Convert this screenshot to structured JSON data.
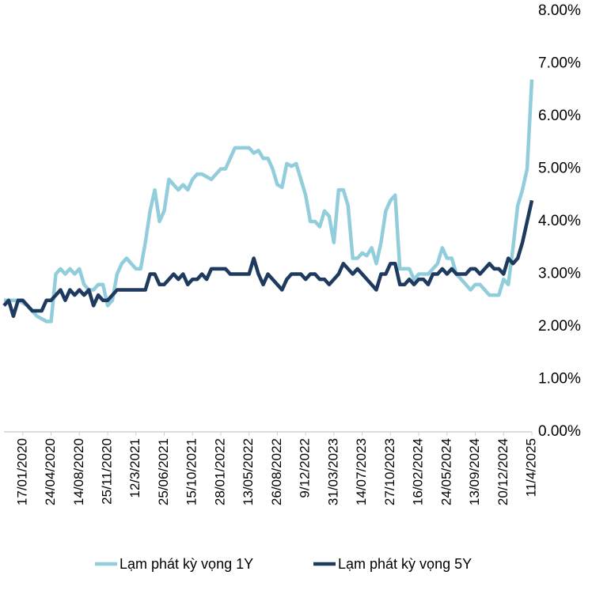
{
  "chart_data": {
    "type": "line",
    "categories": [
      null,
      null,
      null,
      null,
      "17/01/2020",
      null,
      null,
      null,
      null,
      null,
      "24/04/2020",
      null,
      null,
      null,
      null,
      null,
      "14/08/2020",
      null,
      null,
      null,
      null,
      null,
      "25/11/2020",
      null,
      null,
      null,
      null,
      null,
      "12/3/2021",
      null,
      null,
      null,
      null,
      null,
      "25/06/2021",
      null,
      null,
      null,
      null,
      null,
      "15/10/2021",
      null,
      null,
      null,
      null,
      null,
      "28/01/2022",
      null,
      null,
      null,
      null,
      null,
      "13/05/2022",
      null,
      null,
      null,
      null,
      null,
      "26/08/2022",
      null,
      null,
      null,
      null,
      null,
      "9/12/2022",
      null,
      null,
      null,
      null,
      null,
      "31/03/2023",
      null,
      null,
      null,
      null,
      null,
      "14/07/2023",
      null,
      null,
      null,
      null,
      null,
      "27/10/2023",
      null,
      null,
      null,
      null,
      null,
      "16/02/2024",
      null,
      null,
      null,
      null,
      null,
      "24/05/2024",
      null,
      null,
      null,
      null,
      null,
      "13/09/2024",
      null,
      null,
      null,
      null,
      null,
      "20/12/2024",
      null,
      null,
      null,
      null,
      null,
      "11/4/2025"
    ],
    "series": [
      {
        "name": "Lạm phát kỳ vọng 1Y",
        "color": "#92cddc",
        "values": [
          2.5,
          2.5,
          2.5,
          2.5,
          2.45,
          2.4,
          2.3,
          2.2,
          2.15,
          2.1,
          2.1,
          3.0,
          3.1,
          3.0,
          3.1,
          3.0,
          3.1,
          2.8,
          2.7,
          2.7,
          2.8,
          2.8,
          2.4,
          2.5,
          3.0,
          3.2,
          3.3,
          3.2,
          3.1,
          3.1,
          3.6,
          4.2,
          4.6,
          4.0,
          4.2,
          4.8,
          4.7,
          4.6,
          4.7,
          4.6,
          4.8,
          4.9,
          4.9,
          4.85,
          4.8,
          4.9,
          5.0,
          5.0,
          5.2,
          5.4,
          5.4,
          5.4,
          5.4,
          5.3,
          5.35,
          5.2,
          5.2,
          5.0,
          4.7,
          4.65,
          5.1,
          5.05,
          5.1,
          4.8,
          4.5,
          4.0,
          4.0,
          3.9,
          4.2,
          4.1,
          3.6,
          4.6,
          4.6,
          4.3,
          3.3,
          3.3,
          3.4,
          3.35,
          3.5,
          3.2,
          3.6,
          4.2,
          4.4,
          4.5,
          3.1,
          3.1,
          3.1,
          2.9,
          3.0,
          3.0,
          3.0,
          3.1,
          3.2,
          3.5,
          3.3,
          3.3,
          3.0,
          2.9,
          2.8,
          2.7,
          2.8,
          2.8,
          2.7,
          2.6,
          2.6,
          2.6,
          2.9,
          2.8,
          3.5,
          4.3,
          4.6,
          5.0,
          6.7
        ]
      },
      {
        "name": "Lạm phát kỳ vọng 5Y",
        "color": "#1f3a5f",
        "values": [
          2.4,
          2.5,
          2.2,
          2.5,
          2.5,
          2.4,
          2.3,
          2.3,
          2.3,
          2.5,
          2.5,
          2.6,
          2.7,
          2.5,
          2.7,
          2.6,
          2.7,
          2.6,
          2.7,
          2.4,
          2.6,
          2.5,
          2.5,
          2.6,
          2.7,
          2.7,
          2.7,
          2.7,
          2.7,
          2.7,
          2.7,
          3.0,
          3.0,
          2.8,
          2.8,
          2.9,
          3.0,
          2.9,
          3.0,
          2.8,
          2.9,
          2.9,
          3.0,
          2.9,
          3.1,
          3.1,
          3.1,
          3.1,
          3.0,
          3.0,
          3.0,
          3.0,
          3.0,
          3.3,
          3.0,
          2.8,
          3.0,
          2.9,
          2.8,
          2.7,
          2.9,
          3.0,
          3.0,
          3.0,
          2.9,
          3.0,
          3.0,
          2.9,
          2.9,
          2.8,
          2.9,
          3.0,
          3.2,
          3.1,
          3.0,
          3.1,
          3.0,
          2.9,
          2.8,
          2.7,
          3.0,
          3.0,
          3.2,
          3.2,
          2.8,
          2.8,
          2.9,
          2.8,
          2.9,
          2.9,
          2.8,
          3.0,
          3.0,
          3.1,
          3.0,
          3.1,
          3.0,
          3.0,
          3.0,
          3.1,
          3.1,
          3.0,
          3.1,
          3.2,
          3.1,
          3.1,
          3.0,
          3.3,
          3.2,
          3.3,
          3.6,
          4.0,
          4.4
        ]
      }
    ],
    "ylim": [
      0,
      8
    ],
    "yticks": [
      {
        "value": 0,
        "label": "0.00%"
      },
      {
        "value": 1,
        "label": "1.00%"
      },
      {
        "value": 2,
        "label": "2.00%"
      },
      {
        "value": 3,
        "label": "3.00%"
      },
      {
        "value": 4,
        "label": "4.00%"
      },
      {
        "value": 5,
        "label": "5.00%"
      },
      {
        "value": 6,
        "label": "6.00%"
      },
      {
        "value": 7,
        "label": "7.00%"
      },
      {
        "value": 8,
        "label": "8.00%"
      }
    ],
    "legend": "bottom"
  }
}
